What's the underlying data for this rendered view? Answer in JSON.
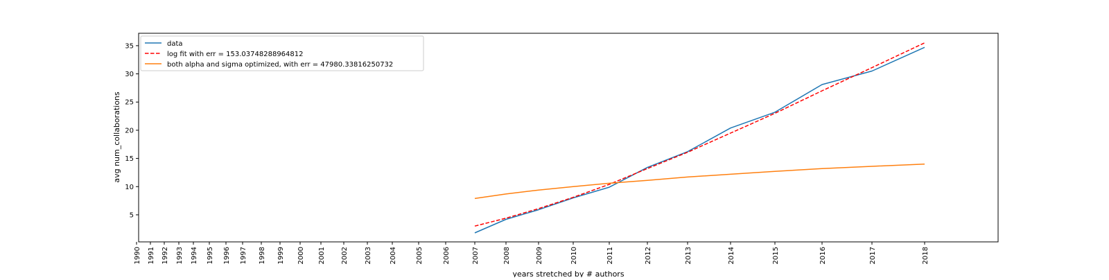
{
  "chart_data": {
    "type": "line",
    "xlabel": "years stretched by # authors",
    "ylabel": "avg num_collaborations",
    "x_ticks": [
      "1990",
      "1991",
      "1992",
      "1993",
      "1994",
      "1995",
      "1996",
      "1997",
      "1998",
      "1999",
      "2000",
      "2001",
      "2002",
      "2003",
      "2004",
      "2005",
      "2006",
      "2007",
      "2008",
      "2009",
      "2010",
      "2011",
      "2012",
      "2013",
      "2014",
      "2015",
      "2016",
      "2017",
      "2018"
    ],
    "y_ticks": [
      5,
      10,
      15,
      20,
      25,
      30,
      35
    ],
    "ylim": [
      0.2,
      37.2
    ],
    "x_scale": "categorical, non-uniform spacing (years stretched by number of authors)",
    "grid": false,
    "legend_position": "upper left",
    "series": [
      {
        "name": "data",
        "color": "#1f77b4",
        "style": "solid",
        "x": [
          "2007",
          "2008",
          "2009",
          "2010",
          "2011",
          "2012",
          "2013",
          "2014",
          "2015",
          "2016",
          "2017",
          "2018"
        ],
        "y": [
          1.8,
          4.2,
          5.9,
          8.0,
          9.9,
          13.4,
          16.2,
          20.4,
          23.2,
          28.1,
          30.5,
          34.7
        ]
      },
      {
        "name": "log fit with err = 153.03748288964812",
        "color": "#ff0000",
        "style": "dashed",
        "x": [
          "2007",
          "2008",
          "2009",
          "2010",
          "2011",
          "2012",
          "2013",
          "2014",
          "2015",
          "2016",
          "2017",
          "2018"
        ],
        "y": [
          3.0,
          4.4,
          6.1,
          8.1,
          10.4,
          13.2,
          16.1,
          19.5,
          23.0,
          27.0,
          31.1,
          35.5
        ]
      },
      {
        "name": "both alpha and sigma optimized, with err = 47980.33816250732",
        "color": "#ff7f0e",
        "style": "solid",
        "x": [
          "2007",
          "2008",
          "2009",
          "2010",
          "2011",
          "2012",
          "2013",
          "2014",
          "2015",
          "2016",
          "2017",
          "2018"
        ],
        "y": [
          7.9,
          8.7,
          9.4,
          10.0,
          10.6,
          11.1,
          11.7,
          12.2,
          12.7,
          13.2,
          13.6,
          14.0
        ]
      }
    ]
  }
}
